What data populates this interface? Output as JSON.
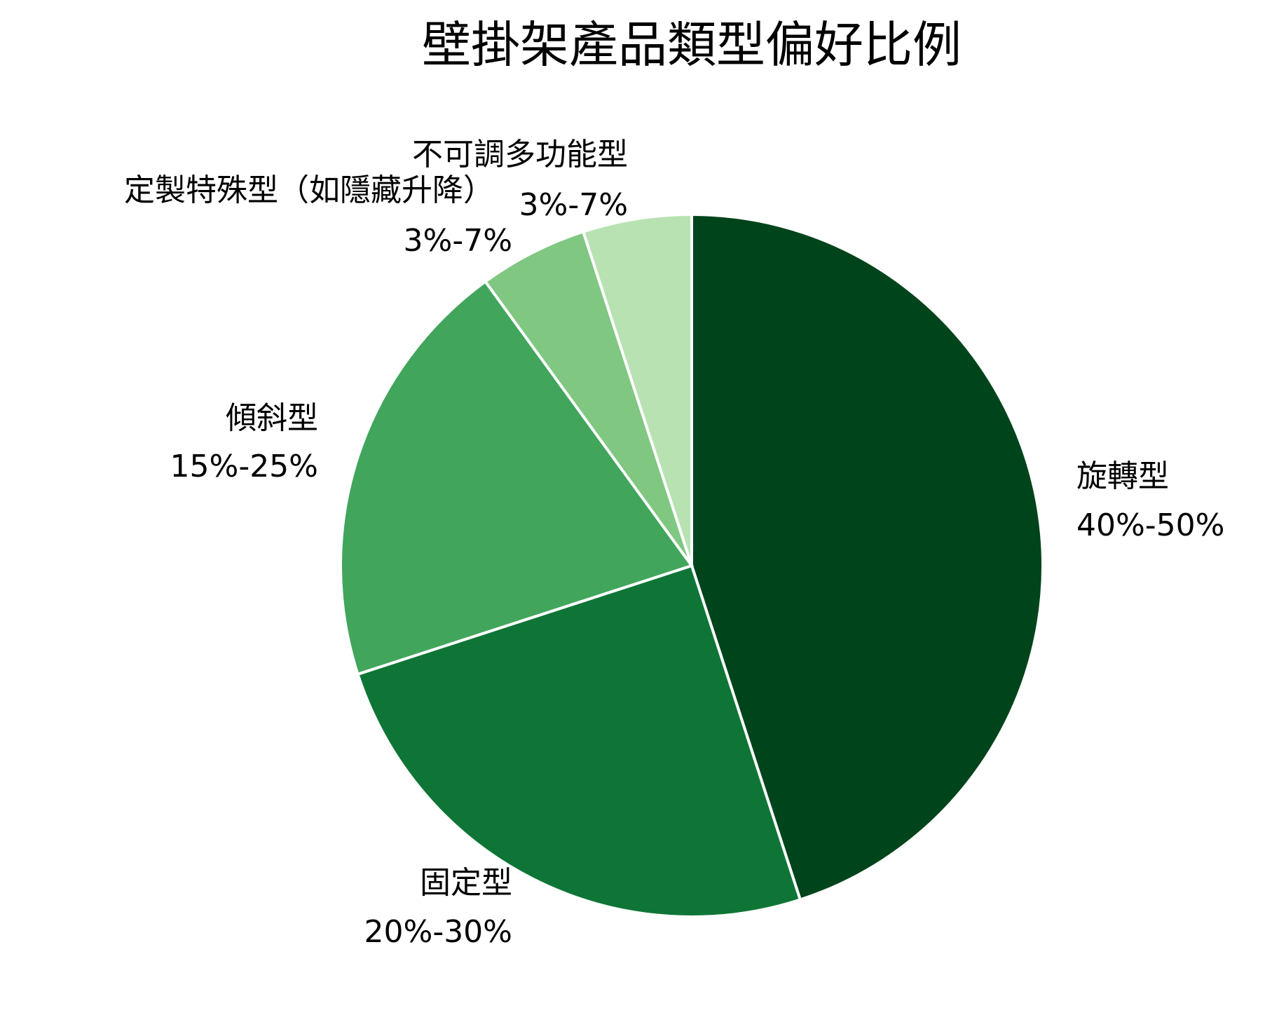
{
  "chart_data": {
    "type": "pie",
    "title": "壁掛架產品類型偏好比例",
    "categories": [
      "旋轉型",
      "固定型",
      "傾斜型",
      "定製特殊型（如隱藏升降）",
      "不可調多功能型"
    ],
    "values": [
      45,
      25,
      20,
      5,
      5
    ],
    "value_labels": [
      "40%-50%",
      "20%-30%",
      "15%-25%",
      "3%-7%",
      "3%-7%"
    ],
    "colors": [
      "#00441b",
      "#0f7536",
      "#41a55c",
      "#80c781",
      "#b8e2b2"
    ]
  }
}
